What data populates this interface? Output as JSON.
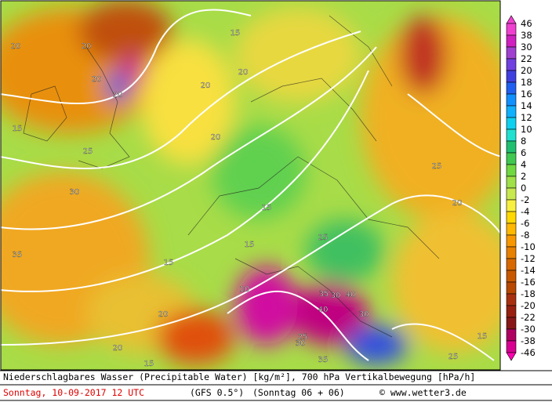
{
  "map": {
    "colorbar": {
      "levels": [
        46,
        38,
        30,
        22,
        20,
        18,
        16,
        14,
        12,
        10,
        8,
        6,
        4,
        2,
        0,
        -2,
        -4,
        -6,
        -8,
        -10,
        -12,
        -14,
        -16,
        -18,
        -20,
        -22,
        -30,
        -38,
        -46
      ],
      "colors": [
        "#f040d0",
        "#d020c0",
        "#a040d0",
        "#7040e0",
        "#4040e0",
        "#2060f0",
        "#1090ff",
        "#10b0ff",
        "#10d0f0",
        "#20e0d0",
        "#20c070",
        "#40c850",
        "#70d840",
        "#a0e048",
        "#c8e850",
        "#f8f040",
        "#ffd800",
        "#ffb800",
        "#f89800",
        "#e88000",
        "#d86800",
        "#c85800",
        "#b84800",
        "#a83010",
        "#982010",
        "#881818",
        "#b00060",
        "#d80090",
        "#ff00b0"
      ]
    },
    "contour_labels": [
      20,
      20,
      15,
      20,
      20,
      20,
      25,
      30,
      15,
      35,
      25,
      20,
      15,
      20,
      15,
      25,
      15,
      10,
      35,
      30,
      25,
      40,
      40,
      35,
      30,
      20,
      15,
      20,
      15,
      30,
      20,
      25
    ],
    "footer": {
      "title": "Niederschlagbares Wasser (Precipitable Water) [kg/m²], 700 hPa Vertikalbewegung [hPa/h]",
      "date": "Sonntag, 10-09-2017  12 UTC",
      "model": "(GFS 0.5°)",
      "run": "(Sonntag 06 + 06)",
      "source": "© www.wetter3.de"
    }
  }
}
